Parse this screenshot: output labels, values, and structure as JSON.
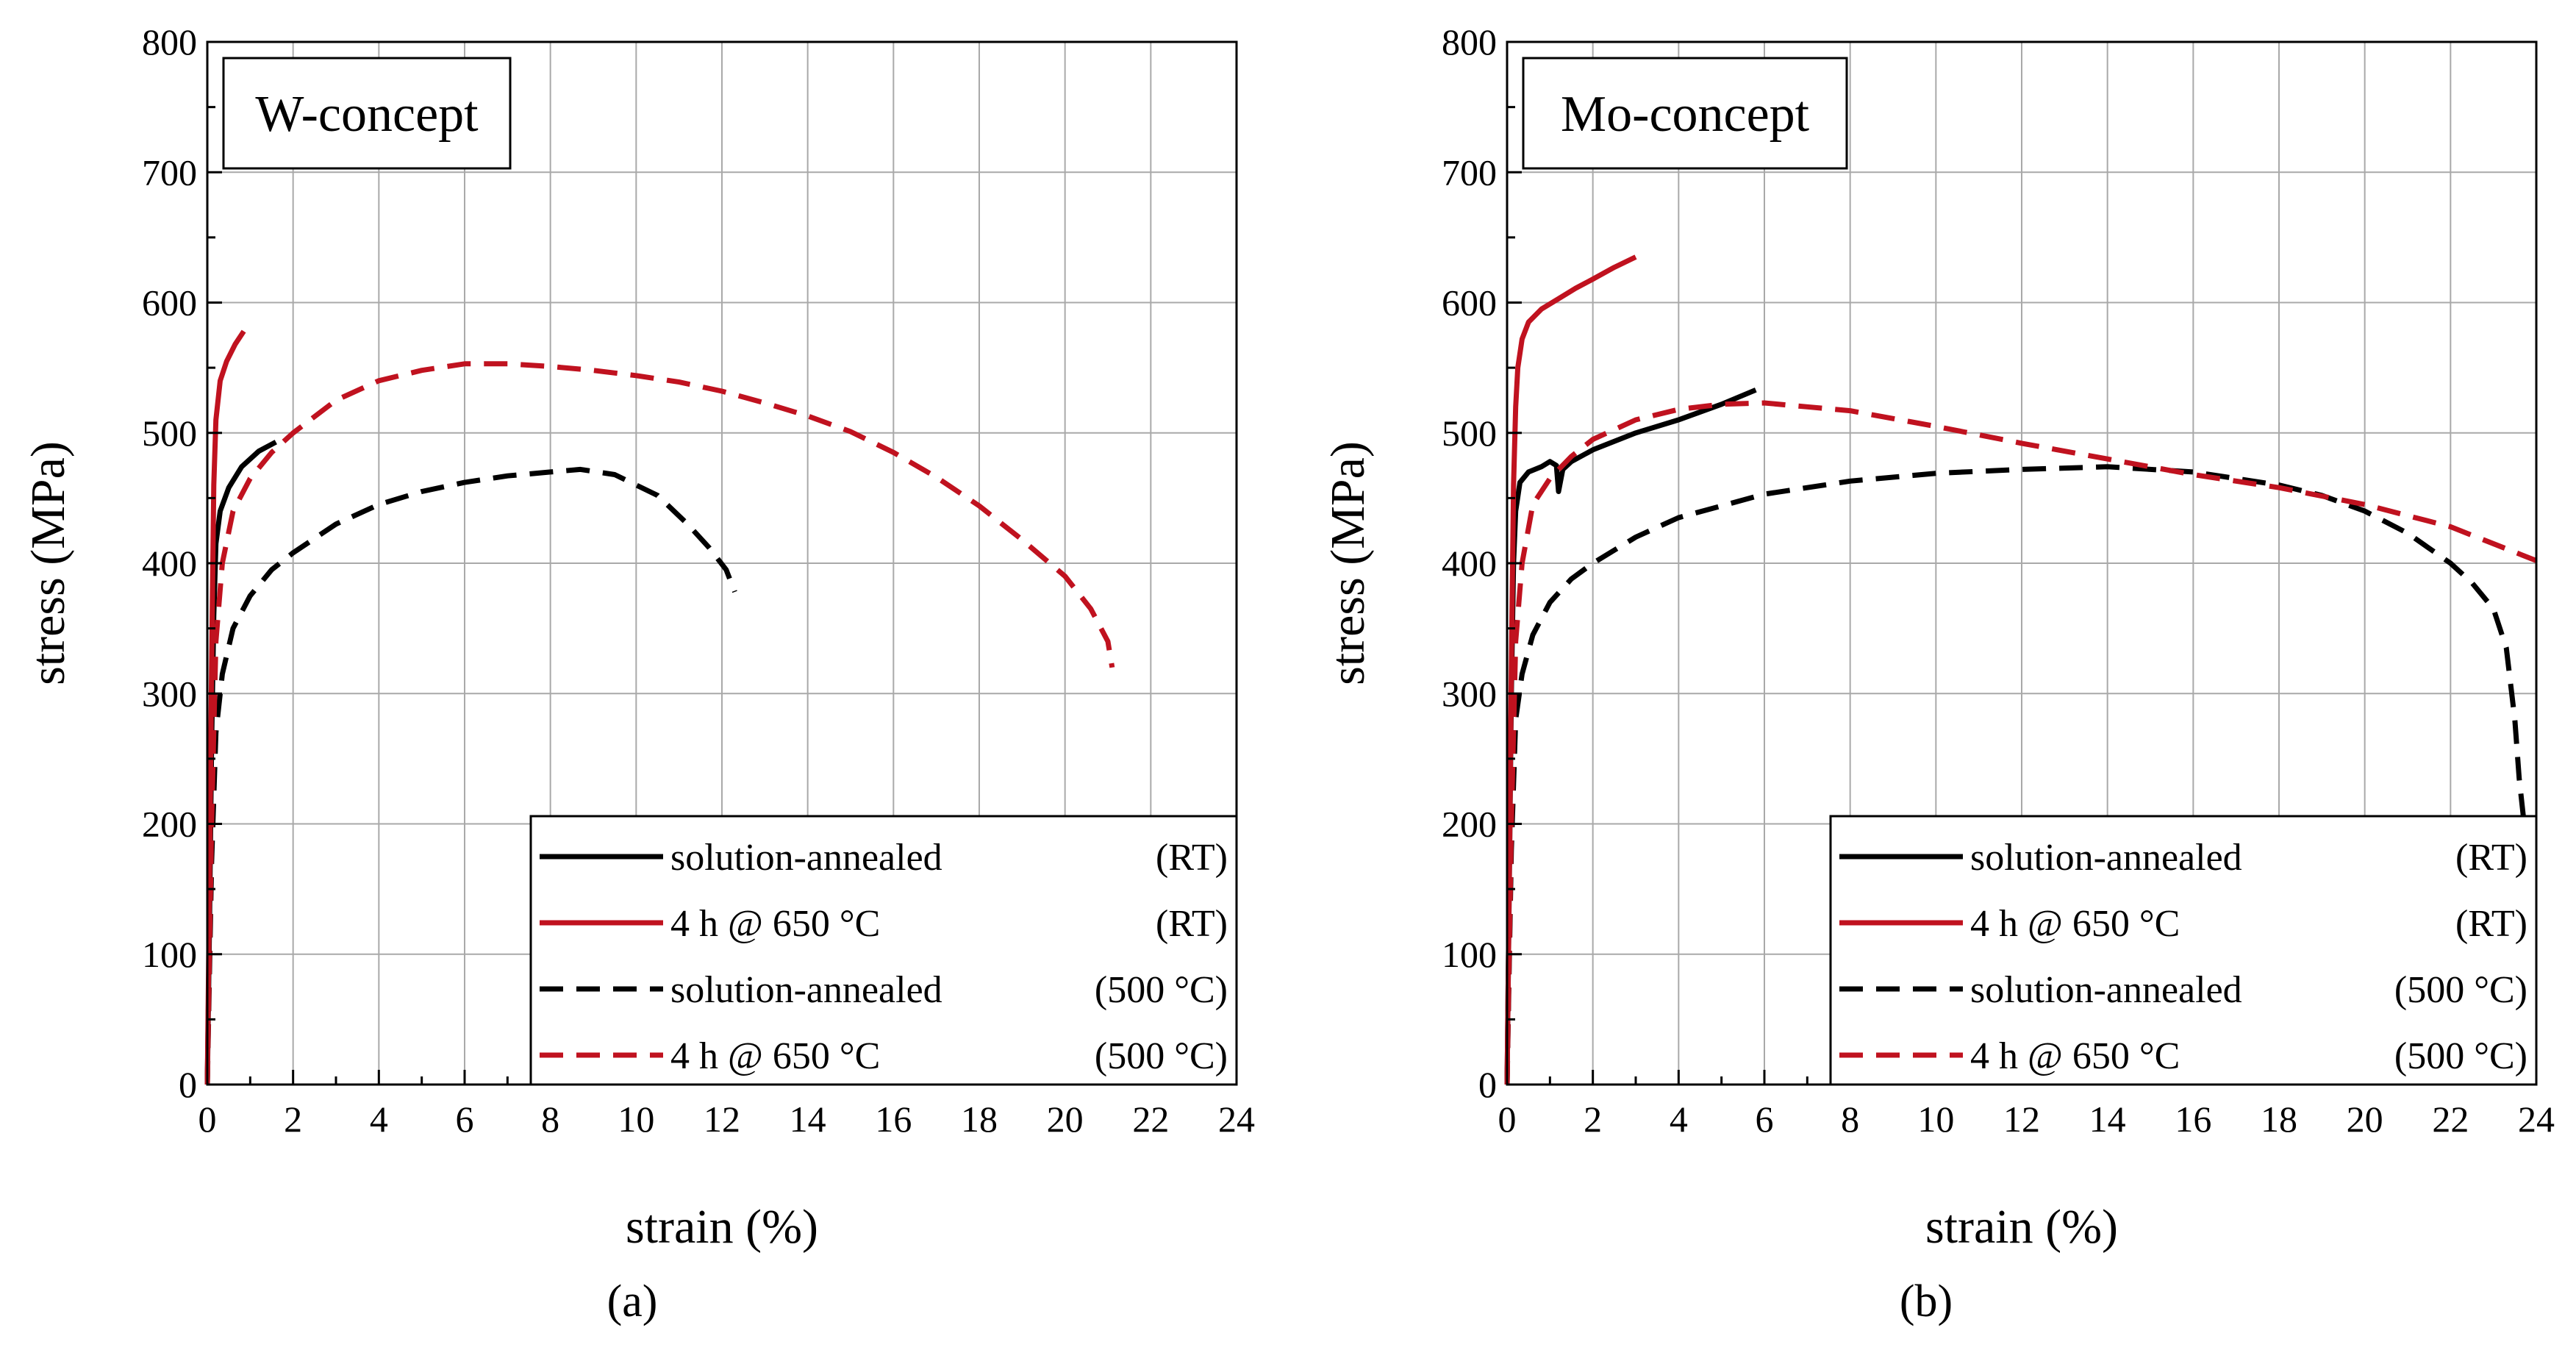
{
  "figure": {
    "captions": [
      "(a)",
      "(b)"
    ]
  },
  "chart_data": [
    {
      "type": "line",
      "title": "W-concept",
      "caption": "(a)",
      "xlabel": "strain (%)",
      "ylabel": "stress (MPa)",
      "xlim": [
        0,
        24
      ],
      "ylim": [
        0,
        800
      ],
      "x_ticks": [
        0,
        2,
        4,
        6,
        8,
        10,
        12,
        14,
        16,
        18,
        20,
        22,
        24
      ],
      "y_ticks": [
        0,
        100,
        200,
        300,
        400,
        500,
        600,
        700,
        800
      ],
      "grid": true,
      "legend_position": "bottom-right",
      "series": [
        {
          "name": "solution-annealed",
          "condition": "(RT)",
          "color": "#000000",
          "dash": "solid",
          "x": [
            0,
            0.05,
            0.1,
            0.15,
            0.2,
            0.3,
            0.5,
            0.8,
            1.2,
            1.6
          ],
          "y": [
            0,
            120,
            260,
            360,
            415,
            440,
            458,
            474,
            486,
            493
          ]
        },
        {
          "name": "4 h @ 650 °C",
          "condition": "(RT)",
          "color": "#c0121f",
          "dash": "solid",
          "x": [
            0,
            0.05,
            0.1,
            0.15,
            0.2,
            0.3,
            0.45,
            0.65,
            0.85
          ],
          "y": [
            0,
            150,
            320,
            460,
            510,
            540,
            555,
            568,
            578
          ]
        },
        {
          "name": "solution-annealed",
          "condition": "(500 °C)",
          "color": "#000000",
          "dash": "dashed",
          "x": [
            0,
            0.1,
            0.2,
            0.35,
            0.6,
            1,
            1.5,
            2,
            3,
            4,
            5,
            6,
            7,
            8,
            8.7,
            9.5,
            10.5,
            11.2,
            11.7,
            12.1,
            12.3
          ],
          "y": [
            0,
            170,
            270,
            315,
            350,
            375,
            395,
            408,
            430,
            445,
            455,
            462,
            467,
            470,
            472,
            468,
            452,
            430,
            412,
            395,
            378
          ]
        },
        {
          "name": "4 h @ 650 °C",
          "condition": "(500 °C)",
          "color": "#c0121f",
          "dash": "dashed",
          "x": [
            0,
            0.1,
            0.2,
            0.35,
            0.6,
            1,
            1.5,
            2,
            3,
            4,
            5,
            6,
            7,
            8,
            9,
            10,
            11,
            12,
            13,
            14,
            15,
            16,
            17,
            18,
            19,
            20,
            20.6,
            21,
            21.1
          ],
          "y": [
            0,
            200,
            340,
            400,
            440,
            465,
            485,
            500,
            525,
            540,
            548,
            553,
            553,
            551,
            548,
            544,
            539,
            532,
            523,
            513,
            501,
            485,
            466,
            444,
            418,
            390,
            365,
            340,
            320
          ]
        }
      ]
    },
    {
      "type": "line",
      "title": "Mo-concept",
      "caption": "(b)",
      "xlabel": "strain (%)",
      "ylabel": "stress (MPa)",
      "xlim": [
        0,
        24
      ],
      "ylim": [
        0,
        800
      ],
      "x_ticks": [
        0,
        2,
        4,
        6,
        8,
        10,
        12,
        14,
        16,
        18,
        20,
        22,
        24
      ],
      "y_ticks": [
        0,
        100,
        200,
        300,
        400,
        500,
        600,
        700,
        800
      ],
      "grid": true,
      "legend_position": "bottom-right",
      "series": [
        {
          "name": "solution-annealed",
          "condition": "(RT)",
          "color": "#000000",
          "dash": "solid",
          "x": [
            0,
            0.05,
            0.1,
            0.15,
            0.2,
            0.3,
            0.5,
            0.8,
            1.0,
            1.15,
            1.2,
            1.3,
            1.5,
            2,
            3,
            4,
            5,
            5.8
          ],
          "y": [
            0,
            150,
            300,
            400,
            440,
            462,
            470,
            474,
            478,
            475,
            455,
            472,
            478,
            487,
            500,
            510,
            522,
            533
          ]
        },
        {
          "name": "4 h @ 650 °C",
          "condition": "(RT)",
          "color": "#c0121f",
          "dash": "solid",
          "x": [
            0,
            0.05,
            0.1,
            0.15,
            0.2,
            0.25,
            0.35,
            0.5,
            0.8,
            1.2,
            1.6,
            2,
            2.5,
            3
          ],
          "y": [
            0,
            150,
            320,
            460,
            520,
            550,
            572,
            585,
            595,
            603,
            611,
            618,
            627,
            635
          ]
        },
        {
          "name": "solution-annealed",
          "condition": "(500 °C)",
          "color": "#000000",
          "dash": "dashed",
          "x": [
            0,
            0.1,
            0.2,
            0.35,
            0.6,
            1,
            1.5,
            2,
            3,
            4,
            6,
            8,
            10,
            12,
            14,
            16,
            18,
            19,
            20,
            21,
            22,
            22.5,
            23,
            23.3,
            23.5,
            23.6,
            23.7
          ],
          "y": [
            0,
            180,
            280,
            315,
            345,
            370,
            388,
            400,
            420,
            435,
            453,
            463,
            469,
            472,
            474,
            470,
            460,
            452,
            440,
            423,
            400,
            385,
            365,
            335,
            280,
            235,
            205
          ]
        },
        {
          "name": "4 h @ 650 °C",
          "condition": "(500 °C)",
          "color": "#c0121f",
          "dash": "dashed",
          "x": [
            0,
            0.1,
            0.2,
            0.35,
            0.6,
            1,
            1.5,
            2,
            3,
            4,
            5,
            6,
            7,
            8,
            10,
            12,
            14,
            16,
            18,
            20,
            22,
            24
          ],
          "y": [
            0,
            200,
            340,
            400,
            445,
            465,
            482,
            495,
            510,
            518,
            522,
            523,
            520,
            517,
            505,
            492,
            480,
            468,
            458,
            445,
            428,
            402
          ]
        }
      ]
    }
  ]
}
